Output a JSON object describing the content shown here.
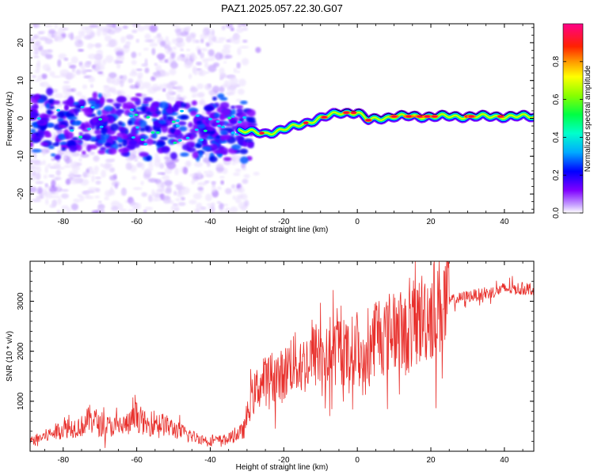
{
  "figure_title": "PAZ1.2025.057.22.30.G07",
  "colors": {
    "snr_line": "#e8302c",
    "frame": "#000000",
    "background": "#ffffff"
  },
  "chart_data": [
    {
      "type": "heatmap",
      "name": "spectrogram",
      "title": "",
      "xlabel": "Height of straight line (km)",
      "ylabel": "Frequency (Hz)",
      "xlim": [
        -89,
        48
      ],
      "ylim": [
        -25,
        25
      ],
      "xticks": [
        -80,
        -60,
        -40,
        -20,
        0,
        20,
        40
      ],
      "yticks": [
        -20,
        -10,
        0,
        10,
        20
      ],
      "grid": false,
      "colorbar": {
        "label": "Normalized spectral amplitude",
        "range": [
          0,
          1
        ],
        "ticks": [
          "0.0",
          "0.2",
          "0.4",
          "0.6",
          "0.8"
        ],
        "colormap": [
          "#ffffff",
          "#7f00ff",
          "#0000ff",
          "#00bfff",
          "#00ff66",
          "#ffff00",
          "#ff8000",
          "#ff0000",
          "#ff0080"
        ]
      },
      "ridge": {
        "description_points_x": [
          -89,
          -80,
          -70,
          -60,
          -50,
          -42,
          -35,
          -30,
          -25,
          -20,
          -15,
          -10,
          -5,
          0,
          3,
          6,
          10,
          20,
          30,
          40,
          48
        ],
        "frequency_hz": [
          -1,
          -1.5,
          -2,
          -2,
          -3,
          -3,
          -3,
          -3.5,
          -4,
          -3,
          -1.5,
          0,
          1.5,
          1.5,
          -0.5,
          0,
          0.5,
          0.5,
          0.5,
          0.5,
          0.5
        ]
      }
    },
    {
      "type": "line",
      "name": "snr",
      "title": "",
      "xlabel": "Height of straight line (km)",
      "ylabel": "SNR (10 * v/v)",
      "xlim": [
        -89,
        48
      ],
      "ylim": [
        0,
        3800
      ],
      "xticks": [
        -80,
        -60,
        -40,
        -20,
        0,
        20,
        40
      ],
      "yticks": [
        1000,
        2000,
        3000
      ],
      "grid": false,
      "series": [
        {
          "x": [
            -89,
            -85,
            -80,
            -75,
            -72,
            -70,
            -65,
            -62,
            -60,
            -57,
            -55,
            -50,
            -45,
            -40,
            -35,
            -31,
            -29,
            -27,
            -25,
            -23,
            -20,
            -18,
            -15,
            -12,
            -10,
            -8,
            -5,
            -3,
            0,
            2,
            5,
            8,
            10,
            13,
            15,
            18,
            20,
            22,
            25,
            30,
            35,
            40,
            45,
            48
          ],
          "y": [
            200,
            300,
            450,
            500,
            700,
            500,
            500,
            550,
            700,
            500,
            600,
            450,
            300,
            200,
            250,
            400,
            1000,
            1300,
            1400,
            1500,
            1500,
            1800,
            1700,
            1900,
            2000,
            1800,
            2100,
            1900,
            2100,
            1600,
            2400,
            2300,
            2500,
            2300,
            2500,
            2700,
            2800,
            2900,
            3000,
            3100,
            3150,
            3250,
            3250,
            3250
          ]
        }
      ]
    }
  ]
}
